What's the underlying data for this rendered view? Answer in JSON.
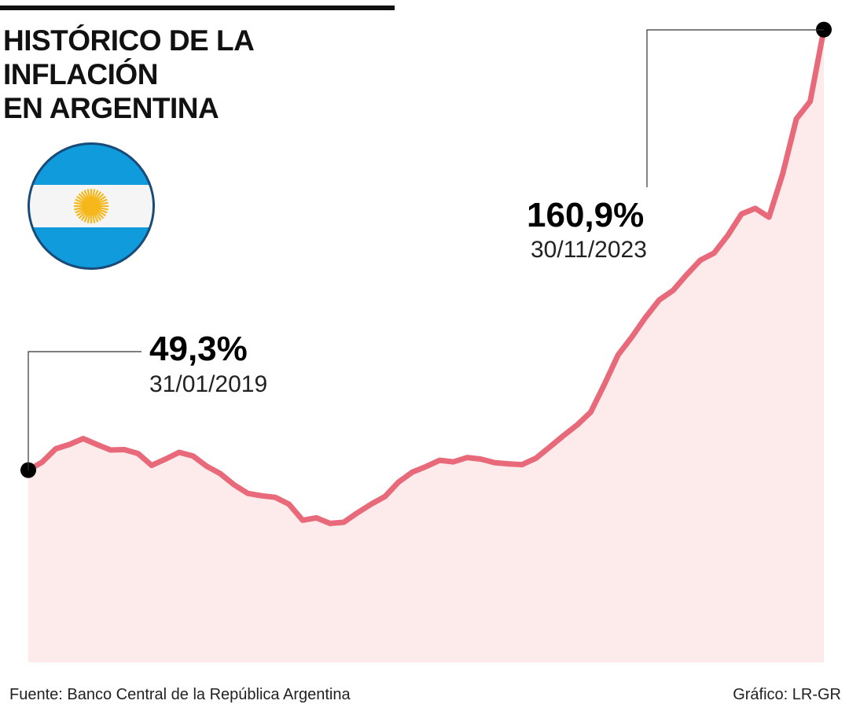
{
  "chart_data": {
    "type": "area",
    "title": "HISTÓRICO DE LA INFLACIÓN EN ARGENTINA",
    "x_start": "2019-01-31",
    "x_end": "2023-11-30",
    "x_frequency": "monthly",
    "values": [
      49.3,
      51.3,
      54.7,
      55.8,
      57.3,
      55.8,
      54.4,
      54.5,
      53.5,
      50.5,
      52.1,
      53.8,
      52.9,
      50.3,
      48.4,
      45.6,
      43.4,
      42.8,
      42.4,
      40.7,
      36.6,
      37.2,
      35.8,
      36.1,
      38.5,
      40.7,
      42.6,
      46.3,
      48.8,
      50.2,
      51.8,
      51.4,
      52.5,
      52.1,
      51.2,
      50.9,
      50.7,
      52.3,
      55.1,
      58.0,
      60.7,
      64.0,
      71.0,
      78.5,
      83.0,
      88.0,
      92.4,
      94.8,
      98.8,
      102.5,
      104.3,
      108.8,
      114.2,
      115.6,
      113.4,
      124.4,
      138.3,
      142.7,
      160.9
    ],
    "ylim": [
      0,
      165
    ],
    "grid": false,
    "line_color": "#e8697a",
    "fill_color": "#fdeaea",
    "annotations": [
      {
        "value_label": "49,3%",
        "date_label": "31/01/2019"
      },
      {
        "value_label": "160,9%",
        "date_label": "30/11/2023"
      }
    ]
  },
  "title_line1": "HISTÓRICO DE LA INFLACIÓN",
  "title_line2": "EN ARGENTINA",
  "flag_icon": "argentina-flag",
  "footer": {
    "source": "Fuente: Banco Central de la República Argentina",
    "credit": "Gráfico: LR-GR"
  }
}
